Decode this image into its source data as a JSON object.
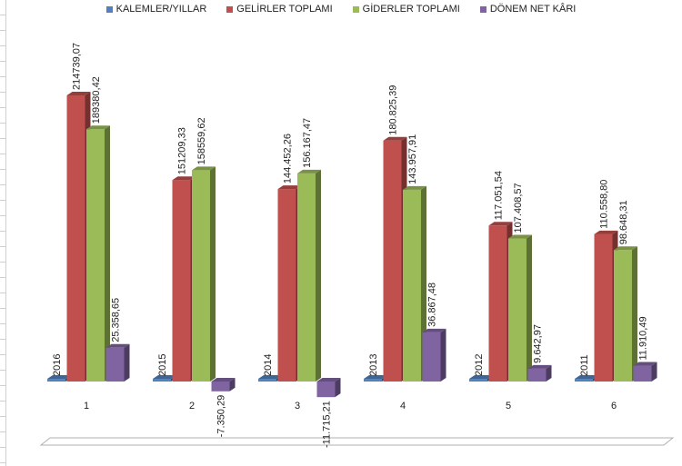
{
  "chart_data": {
    "type": "bar",
    "title": "",
    "xlabel": "",
    "ylabel": "",
    "categories": [
      "1",
      "2",
      "3",
      "4",
      "5",
      "6"
    ],
    "ylim": [
      -40000,
      250000
    ],
    "grid": false,
    "legend_position": "top",
    "series": [
      {
        "name": "KALEMLER/YILLAR",
        "color": "#4f81bd",
        "values": [
          2016,
          2015,
          2014,
          2013,
          2012,
          2011
        ],
        "labels": [
          "2016",
          "2015",
          "2014",
          "2013",
          "2012",
          "2011"
        ]
      },
      {
        "name": "GELİRLER TOPLAMI",
        "color": "#c0504d",
        "values": [
          214739.07,
          151209.33,
          144452.26,
          180825.39,
          117051.54,
          110558.8
        ],
        "labels": [
          "214739,07",
          "151209,33",
          "144.452,26",
          "180.825,39",
          "117.051,54",
          "110.558,80"
        ]
      },
      {
        "name": "GİDERLER TOPLAMI",
        "color": "#9bbb59",
        "values": [
          189380.42,
          158559.62,
          156167.47,
          143957.91,
          107408.57,
          98648.31
        ],
        "labels": [
          "189380,42",
          "158559,62",
          "156.167,47",
          "143.957,91",
          "107.408,57",
          "98.648,31"
        ]
      },
      {
        "name": "DÖNEM NET KÂRI",
        "color": "#8064a2",
        "values": [
          25358.65,
          -7350.29,
          -11715.21,
          36867.48,
          9642.97,
          11910.49
        ],
        "labels": [
          "25.358,65",
          "-7.350,29",
          "-11.715,21",
          "36.867,48",
          "9.642,97",
          "11.910,49"
        ]
      }
    ]
  }
}
